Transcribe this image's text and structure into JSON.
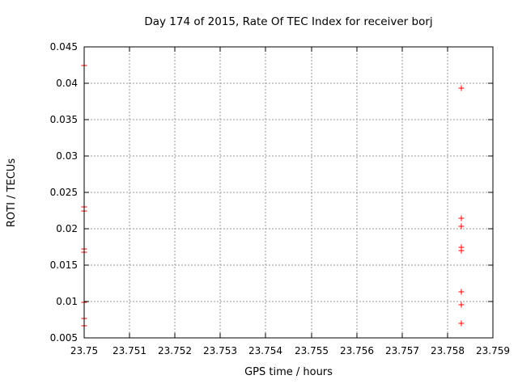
{
  "colors": {
    "background": "#ffffff",
    "axis": "#000000",
    "grid": "#999999",
    "text": "#000000",
    "marker": "#ff0000"
  },
  "chart_data": {
    "type": "scatter",
    "title": "Day 174 of 2015, Rate Of TEC Index for receiver borj",
    "xlabel": "GPS time / hours",
    "ylabel": "ROTI / TECUs",
    "xlim": [
      23.75,
      23.759
    ],
    "ylim": [
      0.005,
      0.045
    ],
    "grid": true,
    "grid_style": "dotted",
    "legend": "none",
    "xticks": {
      "values": [
        23.75,
        23.751,
        23.752,
        23.753,
        23.754,
        23.755,
        23.756,
        23.757,
        23.758,
        23.759
      ],
      "labels": [
        "23.75",
        "23.751",
        "23.752",
        "23.753",
        "23.754",
        "23.755",
        "23.756",
        "23.757",
        "23.758",
        "23.759"
      ]
    },
    "yticks": {
      "values": [
        0.005,
        0.01,
        0.015,
        0.02,
        0.025,
        0.03,
        0.035,
        0.04,
        0.045
      ],
      "labels": [
        "0.005",
        "0.01",
        "0.015",
        "0.02",
        "0.025",
        "0.03",
        "0.035",
        "0.04",
        "0.045"
      ]
    },
    "series": [
      {
        "name": "ROTI",
        "marker": "plus",
        "color": "#ff0000",
        "points": [
          [
            23.75,
            0.0424
          ],
          [
            23.75,
            0.023
          ],
          [
            23.75,
            0.0224
          ],
          [
            23.75,
            0.0172
          ],
          [
            23.75,
            0.0168
          ],
          [
            23.75,
            0.0099
          ],
          [
            23.75,
            0.0077
          ],
          [
            23.75,
            0.0067
          ],
          [
            23.7583,
            0.0393
          ],
          [
            23.7583,
            0.0214
          ],
          [
            23.7583,
            0.0203
          ],
          [
            23.7583,
            0.0174
          ],
          [
            23.7583,
            0.017
          ],
          [
            23.7583,
            0.0113
          ],
          [
            23.7583,
            0.0096
          ],
          [
            23.7583,
            0.007
          ]
        ]
      }
    ]
  }
}
